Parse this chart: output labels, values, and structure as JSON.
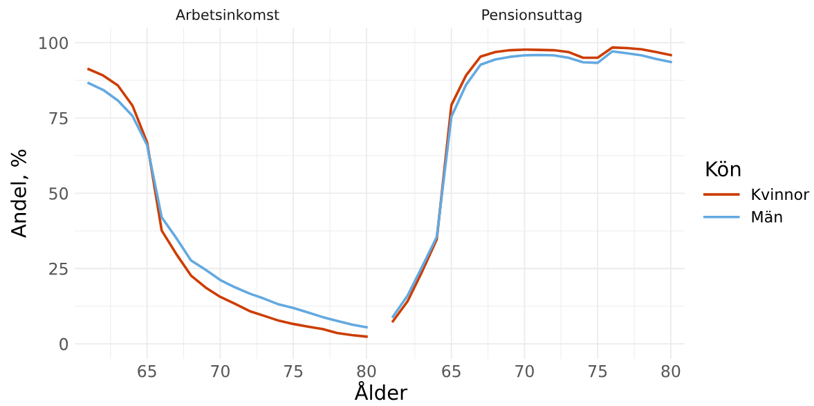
{
  "chart_data": [
    {
      "type": "line",
      "title": "Arbetsinkomst",
      "xlabel": "Ålder",
      "ylabel": "Andel, %",
      "x": [
        61,
        62,
        63,
        64,
        65,
        66,
        67,
        68,
        69,
        70,
        71,
        72,
        73,
        74,
        75,
        76,
        77,
        78,
        79,
        80
      ],
      "series": [
        {
          "color": "#cc3d00",
          "values": [
            91.2,
            89.1,
            85.8,
            79.1,
            66.9,
            37.6,
            29.8,
            22.7,
            18.7,
            15.6,
            13.3,
            10.9,
            9.3,
            7.7,
            6.6,
            5.7,
            4.9,
            3.6,
            2.9,
            2.4
          ]
        },
        {
          "color": "#63a9e0",
          "values": [
            86.6,
            84.3,
            80.8,
            75.7,
            66.0,
            42.0,
            35.1,
            27.7,
            24.6,
            21.2,
            18.8,
            16.7,
            15.0,
            13.1,
            11.9,
            10.4,
            8.9,
            7.6,
            6.4,
            5.5
          ]
        }
      ],
      "xlim": [
        60.05,
        80.95
      ],
      "ylim": [
        -5,
        105
      ],
      "xticks": [
        65,
        70,
        75,
        80
      ],
      "yticks": [
        0,
        25,
        50,
        75,
        100
      ],
      "grid": true
    },
    {
      "type": "line",
      "title": "Pensionsuttag",
      "x": [
        61,
        62,
        63,
        64,
        65,
        66,
        67,
        68,
        69,
        70,
        71,
        72,
        73,
        74,
        75,
        76,
        77,
        78,
        79,
        80
      ],
      "series": [
        {
          "name": "Kvinnor",
          "color": "#cc3d00",
          "values": [
            7.5,
            14.1,
            24.0,
            34.7,
            79.3,
            89.1,
            95.4,
            96.9,
            97.5,
            97.7,
            97.6,
            97.5,
            96.9,
            95.0,
            95.0,
            98.4,
            98.2,
            97.8,
            96.9,
            95.9
          ]
        },
        {
          "name": "Män",
          "color": "#63a9e0",
          "values": [
            9.0,
            16.0,
            25.6,
            35.5,
            75.4,
            86.0,
            92.7,
            94.4,
            95.3,
            95.8,
            95.9,
            95.8,
            95.0,
            93.5,
            93.3,
            97.1,
            96.5,
            95.8,
            94.6,
            93.6
          ]
        }
      ],
      "xlim": [
        60.05,
        80.95
      ],
      "ylim": [
        -5,
        105
      ],
      "xticks": [
        65,
        70,
        75,
        80
      ],
      "yticks": [
        0,
        25,
        50,
        75,
        100
      ],
      "tick_labels": "x",
      "grid": true,
      "legend": "right",
      "legend_title": "Kön"
    }
  ]
}
